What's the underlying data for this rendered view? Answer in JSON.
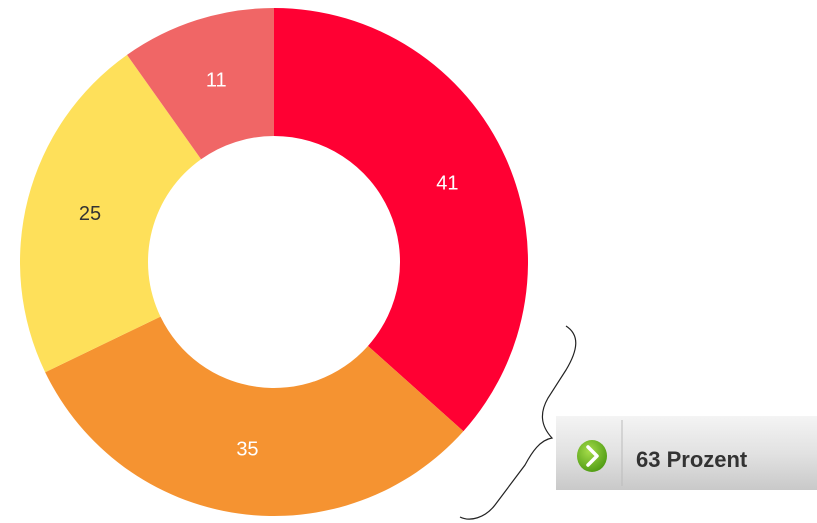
{
  "chart_data": {
    "type": "donut",
    "categories": [
      null,
      null,
      null,
      null
    ],
    "values": [
      41,
      35,
      25,
      11
    ],
    "colors": [
      "#ff0033",
      "#f59331",
      "#fee05a",
      "#f06666"
    ],
    "value_label_colors": [
      "#ffffff",
      "#ffffff",
      "#333333",
      "#ffffff"
    ],
    "annotation": "63 Prozent"
  }
}
